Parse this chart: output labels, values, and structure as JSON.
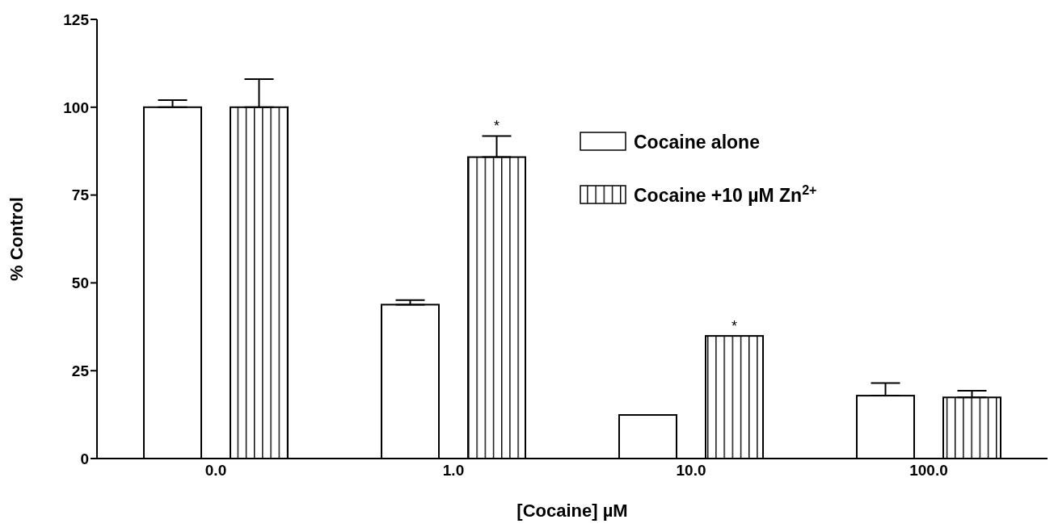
{
  "chart_data": {
    "type": "bar",
    "categories": [
      "0.0",
      "1.0",
      "10.0",
      "100.0"
    ],
    "series": [
      {
        "name": "Cocaine alone",
        "color": "#ffffff",
        "values": [
          100,
          43.8,
          12.4,
          17.9
        ],
        "errors": [
          [
            100,
            102
          ],
          [
            43.8,
            45.1
          ],
          null,
          [
            17.9,
            21.5
          ]
        ]
      },
      {
        "name": "Cocaine +10 µM Zn$^{2+}$",
        "color": "#000000",
        "values": [
          100,
          85.8,
          34.9,
          17.4
        ],
        "errors": [
          [
            100,
            108
          ],
          [
            85.8,
            91.8
          ],
          null,
          [
            17.4,
            19.3
          ]
        ],
        "value_labels": [
          null,
          "*",
          "*",
          null
        ]
      }
    ],
    "xlabel": "[Cocaine] µM",
    "ylabel": "% Control",
    "ylim": [
      0,
      125
    ],
    "yticks": [
      0,
      25,
      50,
      75,
      100,
      125
    ],
    "legend": "top right"
  }
}
